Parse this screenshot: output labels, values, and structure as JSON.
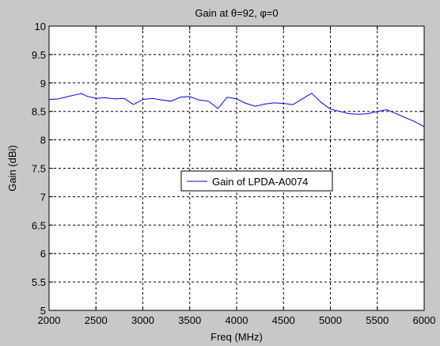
{
  "chart_data": {
    "type": "line",
    "title": "Gain at θ=92, φ=0",
    "xlabel": "Freq (MHz)",
    "ylabel": "Gain (dBi)",
    "xlim": [
      2000,
      6000
    ],
    "ylim": [
      5,
      10
    ],
    "xticks": [
      2000,
      2500,
      3000,
      3500,
      4000,
      4500,
      5000,
      5500,
      6000
    ],
    "yticks": [
      5,
      5.5,
      6,
      6.5,
      7,
      7.5,
      8,
      8.5,
      9,
      9.5,
      10
    ],
    "grid": true,
    "grid_style": "dashed",
    "legend_position": "center",
    "series": [
      {
        "name": "Gain of LPDA-A0074",
        "color": "#0000ff",
        "x": [
          2000,
          2100,
          2200,
          2300,
          2350,
          2400,
          2500,
          2600,
          2700,
          2800,
          2900,
          3000,
          3100,
          3200,
          3300,
          3400,
          3500,
          3600,
          3700,
          3800,
          3900,
          4000,
          4100,
          4200,
          4300,
          4400,
          4500,
          4600,
          4700,
          4800,
          4900,
          5000,
          5100,
          5200,
          5300,
          5400,
          5500,
          5600,
          5700,
          5800,
          5900,
          6000
        ],
        "y": [
          8.71,
          8.72,
          8.76,
          8.8,
          8.81,
          8.77,
          8.73,
          8.74,
          8.72,
          8.73,
          8.62,
          8.71,
          8.73,
          8.7,
          8.68,
          8.75,
          8.76,
          8.7,
          8.68,
          8.55,
          8.75,
          8.72,
          8.64,
          8.59,
          8.63,
          8.65,
          8.64,
          8.62,
          8.72,
          8.82,
          8.66,
          8.54,
          8.5,
          8.46,
          8.45,
          8.46,
          8.5,
          8.53,
          8.46,
          8.39,
          8.32,
          8.23
        ]
      }
    ]
  }
}
